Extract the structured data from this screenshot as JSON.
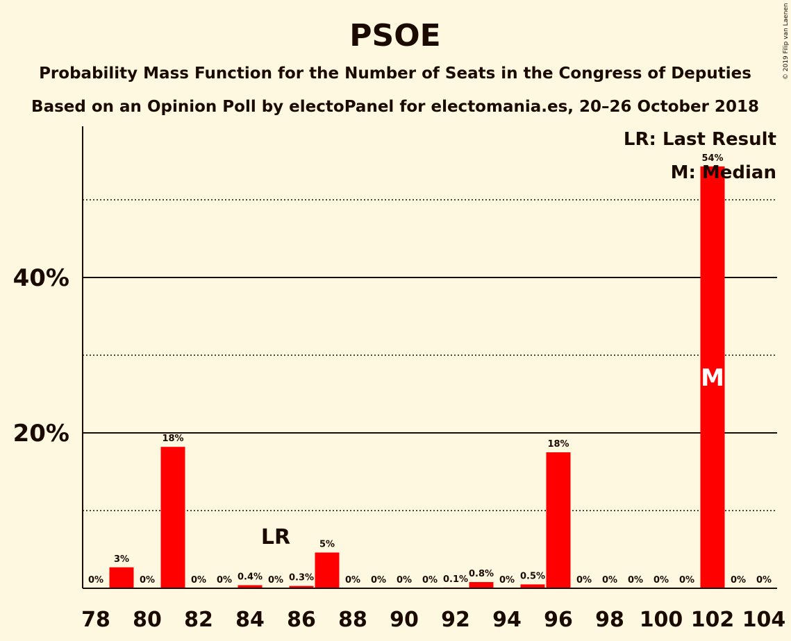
{
  "header": {
    "title": "PSOE",
    "subtitle1": "Probability Mass Function for the Number of Seats in the Congress of Deputies",
    "subtitle2": "Based on an Opinion Poll by electoPanel for electomania.es, 20–26 October 2018",
    "copyright": "© 2019 Filip van Laenen"
  },
  "legend": {
    "last_result": "LR: Last Result",
    "median": "M: Median"
  },
  "markers": {
    "last_result_text": "LR",
    "last_result_seat": 85,
    "median_text": "M",
    "median_seat": 102
  },
  "colors": {
    "bar": "#ff0000",
    "background": "#fff8e1",
    "text": "#1a0a00"
  },
  "chart_data": {
    "type": "bar",
    "title": "PSOE",
    "xlabel": "",
    "ylabel": "",
    "ylim": [
      0,
      60
    ],
    "yticks": [
      {
        "value": 20,
        "label": "20%",
        "style": "solid"
      },
      {
        "value": 40,
        "label": "40%",
        "style": "solid"
      }
    ],
    "ygrid_dotted": [
      10,
      30,
      50
    ],
    "xticks": [
      78,
      80,
      82,
      84,
      86,
      88,
      90,
      92,
      94,
      96,
      98,
      100,
      102,
      104
    ],
    "categories": [
      78,
      79,
      80,
      81,
      82,
      83,
      84,
      85,
      86,
      87,
      88,
      89,
      90,
      91,
      92,
      93,
      94,
      95,
      96,
      97,
      98,
      99,
      100,
      101,
      102,
      103,
      104
    ],
    "values": [
      0,
      2.7,
      0,
      18.2,
      0,
      0,
      0.4,
      0,
      0.3,
      4.6,
      0,
      0,
      0,
      0,
      0.1,
      0.8,
      0,
      0.5,
      17.5,
      0,
      0,
      0,
      0,
      0,
      54.3,
      0,
      0
    ],
    "labels": [
      "0%",
      "3%",
      "0%",
      "18%",
      "0%",
      "0%",
      "0.4%",
      "0%",
      "0.3%",
      "5%",
      "0%",
      "0%",
      "0%",
      "0%",
      "0.1%",
      "0.8%",
      "0%",
      "0.5%",
      "18%",
      "0%",
      "0%",
      "0%",
      "0%",
      "0%",
      "54%",
      "0%",
      "0%"
    ]
  }
}
